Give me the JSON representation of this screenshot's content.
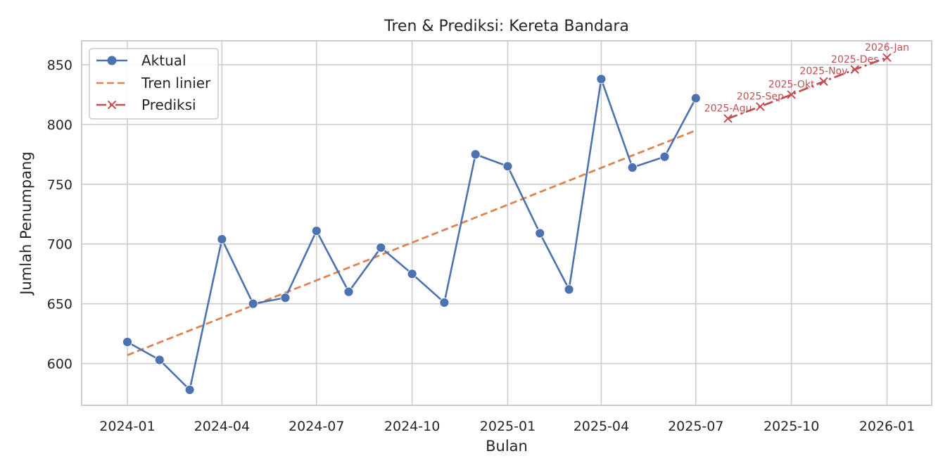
{
  "chart_data": {
    "type": "line",
    "title": "Tren & Prediksi: Kereta Bandara",
    "xlabel": "Bulan",
    "ylabel": "Jumlah Penumpang",
    "ylim": [
      565,
      870
    ],
    "xlim": [
      "2023-11-18",
      "2026-02-13"
    ],
    "y_ticks": [
      600,
      650,
      700,
      750,
      800,
      850
    ],
    "x_ticks": [
      {
        "date": "2024-01-01",
        "label": "2024-01"
      },
      {
        "date": "2024-04-01",
        "label": "2024-04"
      },
      {
        "date": "2024-07-01",
        "label": "2024-07"
      },
      {
        "date": "2024-10-01",
        "label": "2024-10"
      },
      {
        "date": "2025-01-01",
        "label": "2025-01"
      },
      {
        "date": "2025-04-01",
        "label": "2025-04"
      },
      {
        "date": "2025-07-01",
        "label": "2025-07"
      },
      {
        "date": "2025-10-01",
        "label": "2025-10"
      },
      {
        "date": "2026-01-01",
        "label": "2026-01"
      }
    ],
    "grid": true,
    "legend_position": "top-left",
    "series": [
      {
        "name": "Aktual",
        "style": "solid-marker-circle",
        "color": "#4c72b0",
        "x": [
          "2024-01-01",
          "2024-02-01",
          "2024-03-01",
          "2024-04-01",
          "2024-05-01",
          "2024-06-01",
          "2024-07-01",
          "2024-08-01",
          "2024-09-01",
          "2024-10-01",
          "2024-11-01",
          "2024-12-01",
          "2025-01-01",
          "2025-02-01",
          "2025-03-01",
          "2025-04-01",
          "2025-05-01",
          "2025-06-01",
          "2025-07-01"
        ],
        "y": [
          618,
          603,
          578,
          704,
          650,
          655,
          711,
          660,
          697,
          675,
          651,
          775,
          765,
          709,
          662,
          838,
          764,
          773,
          822
        ]
      },
      {
        "name": "Tren linier",
        "style": "dashed",
        "color": "#dd8452",
        "x": [
          "2024-01-01",
          "2025-07-01"
        ],
        "y": [
          607,
          795
        ]
      },
      {
        "name": "Prediksi",
        "style": "dashdot-marker-x",
        "color": "#c44e52",
        "x": [
          "2025-08-01",
          "2025-09-01",
          "2025-10-01",
          "2025-11-01",
          "2025-12-01",
          "2026-01-01"
        ],
        "y": [
          805,
          815,
          825,
          836,
          846,
          856
        ],
        "labels": [
          "2025-Agu",
          "2025-Sep",
          "2025-Okt",
          "2025-Nov",
          "2025-Des",
          "2026-Jan"
        ]
      }
    ]
  }
}
